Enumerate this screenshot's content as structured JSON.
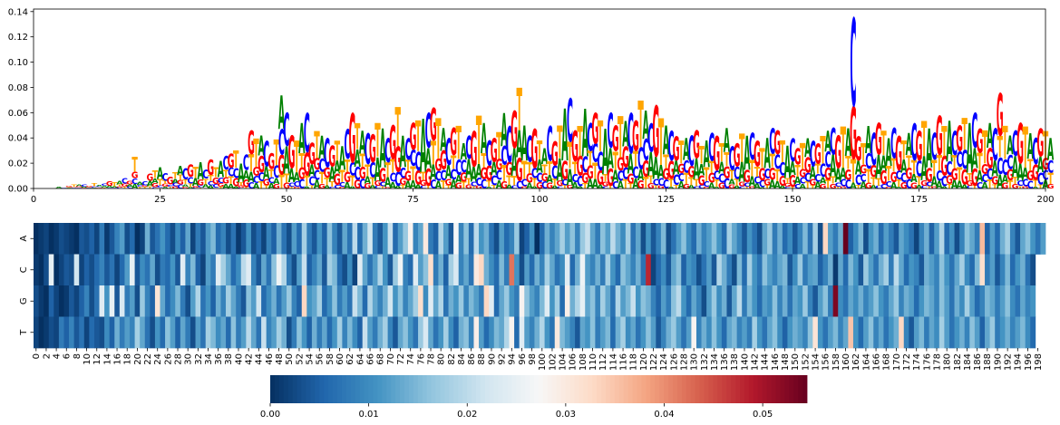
{
  "figure": {
    "background": "#ffffff"
  },
  "chart_data": [
    {
      "type": "sequence-logo",
      "x_ticks": [
        0,
        25,
        50,
        75,
        100,
        125,
        150,
        175,
        200
      ],
      "y_ticks": [
        "0.00",
        "0.02",
        "0.04",
        "0.06",
        "0.08",
        "0.10",
        "0.12",
        "0.14"
      ],
      "xlim": [
        0,
        200
      ],
      "ylim": [
        0,
        0.142
      ],
      "letters": [
        "A",
        "C",
        "G",
        "T"
      ],
      "letter_colors": {
        "A": "#008000",
        "C": "#0000ff",
        "G": "#ff0000",
        "T": "#ffa500"
      },
      "heights": [
        0.0,
        0.0,
        0.0,
        0.0,
        0.0,
        0.001,
        0.001,
        0.002,
        0.003,
        0.003,
        0.003,
        0.002,
        0.004,
        0.003,
        0.004,
        0.006,
        0.005,
        0.006,
        0.008,
        0.006,
        0.025,
        0.005,
        0.006,
        0.012,
        0.014,
        0.017,
        0.012,
        0.009,
        0.013,
        0.018,
        0.016,
        0.019,
        0.017,
        0.021,
        0.015,
        0.023,
        0.017,
        0.022,
        0.026,
        0.028,
        0.03,
        0.02,
        0.027,
        0.046,
        0.04,
        0.042,
        0.038,
        0.028,
        0.039,
        0.074,
        0.06,
        0.042,
        0.038,
        0.052,
        0.06,
        0.036,
        0.046,
        0.042,
        0.04,
        0.034,
        0.038,
        0.034,
        0.047,
        0.06,
        0.052,
        0.046,
        0.044,
        0.043,
        0.052,
        0.048,
        0.04,
        0.05,
        0.065,
        0.042,
        0.04,
        0.052,
        0.054,
        0.056,
        0.06,
        0.064,
        0.056,
        0.048,
        0.04,
        0.048,
        0.05,
        0.036,
        0.042,
        0.046,
        0.058,
        0.052,
        0.038,
        0.04,
        0.045,
        0.06,
        0.05,
        0.062,
        0.08,
        0.05,
        0.042,
        0.048,
        0.038,
        0.032,
        0.05,
        0.038,
        0.05,
        0.064,
        0.072,
        0.046,
        0.05,
        0.064,
        0.052,
        0.06,
        0.054,
        0.048,
        0.06,
        0.05,
        0.058,
        0.054,
        0.06,
        0.054,
        0.07,
        0.062,
        0.052,
        0.066,
        0.056,
        0.05,
        0.046,
        0.042,
        0.038,
        0.04,
        0.042,
        0.046,
        0.034,
        0.038,
        0.044,
        0.042,
        0.036,
        0.048,
        0.034,
        0.036,
        0.044,
        0.042,
        0.044,
        0.038,
        0.032,
        0.04,
        0.048,
        0.046,
        0.038,
        0.034,
        0.04,
        0.032,
        0.036,
        0.04,
        0.038,
        0.036,
        0.042,
        0.046,
        0.048,
        0.042,
        0.05,
        0.048,
        0.136,
        0.042,
        0.036,
        0.05,
        0.044,
        0.052,
        0.046,
        0.04,
        0.048,
        0.042,
        0.038,
        0.044,
        0.052,
        0.046,
        0.054,
        0.048,
        0.044,
        0.058,
        0.05,
        0.054,
        0.046,
        0.05,
        0.056,
        0.052,
        0.06,
        0.048,
        0.046,
        0.052,
        0.048,
        0.076,
        0.05,
        0.042,
        0.046,
        0.052,
        0.05,
        0.044,
        0.04,
        0.048,
        0.046,
        0.04
      ]
    },
    {
      "type": "heatmap",
      "y_labels": [
        "A",
        "C",
        "G",
        "T"
      ],
      "x_labels": [
        "0",
        "2",
        "4",
        "6",
        "8",
        "10",
        "12",
        "14",
        "16",
        "18",
        "20",
        "22",
        "24",
        "26",
        "28",
        "30",
        "32",
        "34",
        "36",
        "38",
        "40",
        "42",
        "44",
        "46",
        "48",
        "50",
        "52",
        "54",
        "56",
        "58",
        "60",
        "62",
        "64",
        "66",
        "68",
        "70",
        "72",
        "74",
        "76",
        "78",
        "80",
        "82",
        "84",
        "86",
        "88",
        "90",
        "92",
        "94",
        "96",
        "98",
        "100",
        "102",
        "104",
        "106",
        "108",
        "110",
        "112",
        "114",
        "116",
        "118",
        "120",
        "122",
        "124",
        "126",
        "128",
        "130",
        "132",
        "134",
        "136",
        "138",
        "140",
        "142",
        "144",
        "146",
        "148",
        "150",
        "152",
        "154",
        "156",
        "158",
        "160",
        "162",
        "164",
        "166",
        "168",
        "170",
        "172",
        "174",
        "176",
        "178",
        "180",
        "182",
        "184",
        "186",
        "188",
        "190",
        "192",
        "194",
        "196",
        "198"
      ],
      "n_columns": 200,
      "rows": [
        [
          0.0,
          0.001,
          0.002,
          0.0,
          0.001,
          0.003,
          0.002,
          0.001,
          0.0,
          0.004,
          0.003,
          0.005,
          0.002,
          0.008,
          0.001,
          0.004,
          0.009,
          0.012,
          0.003,
          0.006,
          0.0,
          0.002,
          0.014,
          0.004,
          0.007,
          0.011,
          0.006,
          0.003,
          0.01,
          0.005,
          0.013,
          0.002,
          0.008,
          0.004,
          0.012,
          0.015,
          0.006,
          0.009,
          0.003,
          0.007,
          0.001,
          0.004,
          0.011,
          0.003,
          0.006,
          0.002,
          0.009,
          0.005,
          0.014,
          0.007,
          0.003,
          0.012,
          0.006,
          0.018,
          0.008,
          0.004,
          0.011,
          0.005,
          0.016,
          0.009,
          0.004,
          0.013,
          0.007,
          0.02,
          0.006,
          0.014,
          0.022,
          0.008,
          0.004,
          0.011,
          0.021,
          0.006,
          0.012,
          0.017,
          0.028,
          0.009,
          0.013,
          0.03,
          0.008,
          0.005,
          0.019,
          0.012,
          0.004,
          0.027,
          0.009,
          0.016,
          0.006,
          0.02,
          0.011,
          0.014,
          0.007,
          0.003,
          0.012,
          0.006,
          0.009,
          0.017,
          0.002,
          0.005,
          0.011,
          0.0,
          0.006,
          0.014,
          0.009,
          0.013,
          0.018,
          0.012,
          0.016,
          0.009,
          0.017,
          0.021,
          0.013,
          0.008,
          0.016,
          0.012,
          0.02,
          0.014,
          0.01,
          0.018,
          0.007,
          0.013,
          0.003,
          0.011,
          0.004,
          0.009,
          0.015,
          0.003,
          0.007,
          0.012,
          0.016,
          0.01,
          0.006,
          0.014,
          0.009,
          0.012,
          0.016,
          0.011,
          0.006,
          0.018,
          0.013,
          0.009,
          0.004,
          0.011,
          0.007,
          0.003,
          0.013,
          0.017,
          0.008,
          0.014,
          0.006,
          0.01,
          0.004,
          0.009,
          0.015,
          0.007,
          0.018,
          0.003,
          0.033,
          0.012,
          0.008,
          0.014,
          0.057,
          0.005,
          0.01,
          0.015,
          0.003,
          0.011,
          0.014,
          0.006,
          0.012,
          0.008,
          0.004,
          0.013,
          0.01,
          0.007,
          0.002,
          0.009,
          0.014,
          0.005,
          0.012,
          0.019,
          0.006,
          0.011,
          0.003,
          0.009,
          0.016,
          0.013,
          0.008,
          0.036,
          0.005,
          0.012,
          0.006,
          0.014,
          0.018,
          0.009,
          0.004,
          0.013,
          0.016,
          0.011,
          0.007,
          0.012
        ],
        [
          0.001,
          0.0,
          0.003,
          0.025,
          0.0,
          0.002,
          0.004,
          0.003,
          0.022,
          0.002,
          0.005,
          0.003,
          0.006,
          0.009,
          0.004,
          0.007,
          0.002,
          0.006,
          0.012,
          0.025,
          0.004,
          0.01,
          0.007,
          0.013,
          0.003,
          0.008,
          0.006,
          0.011,
          0.004,
          0.024,
          0.009,
          0.015,
          0.005,
          0.002,
          0.012,
          0.008,
          0.024,
          0.018,
          0.013,
          0.006,
          0.01,
          0.02,
          0.024,
          0.009,
          0.004,
          0.013,
          0.007,
          0.016,
          0.026,
          0.019,
          0.008,
          0.003,
          0.012,
          0.021,
          0.005,
          0.009,
          0.013,
          0.004,
          0.018,
          0.015,
          0.006,
          0.003,
          0.01,
          0.002,
          0.024,
          0.013,
          0.007,
          0.012,
          0.019,
          0.011,
          0.004,
          0.017,
          0.026,
          0.009,
          0.006,
          0.024,
          0.012,
          0.016,
          0.032,
          0.008,
          0.014,
          0.005,
          0.018,
          0.023,
          0.009,
          0.013,
          0.007,
          0.03,
          0.033,
          0.014,
          0.01,
          0.006,
          0.015,
          0.008,
          0.042,
          0.011,
          0.003,
          0.012,
          0.006,
          0.014,
          0.009,
          0.018,
          0.013,
          0.007,
          0.01,
          0.024,
          0.006,
          0.014,
          0.026,
          0.012,
          0.009,
          0.014,
          0.008,
          0.018,
          0.011,
          0.006,
          0.016,
          0.013,
          0.009,
          0.014,
          0.007,
          0.048,
          0.002,
          0.006,
          0.01,
          0.004,
          0.013,
          0.016,
          0.005,
          0.011,
          0.009,
          0.003,
          0.007,
          0.012,
          0.004,
          0.019,
          0.014,
          0.008,
          0.003,
          0.015,
          0.006,
          0.018,
          0.011,
          0.007,
          0.016,
          0.012,
          0.009,
          0.013,
          0.015,
          0.004,
          0.01,
          0.017,
          0.008,
          0.012,
          0.013,
          0.005,
          0.009,
          0.014,
          0.001,
          0.013,
          0.006,
          0.015,
          0.011,
          0.004,
          0.017,
          0.012,
          0.007,
          0.014,
          0.018,
          0.008,
          0.02,
          0.013,
          0.006,
          0.011,
          0.009,
          0.004,
          0.014,
          0.012,
          0.009,
          0.016,
          0.011,
          0.007,
          0.013,
          0.018,
          0.01,
          0.006,
          0.015,
          0.032,
          0.008,
          0.012,
          0.004,
          0.009,
          0.015,
          0.006,
          0.011,
          0.014,
          0.007,
          0.003
        ],
        [
          0.003,
          0.001,
          0.0,
          0.005,
          0.002,
          0.0,
          0.001,
          0.004,
          0.002,
          0.005,
          0.009,
          0.003,
          0.007,
          0.024,
          0.011,
          0.025,
          0.004,
          0.023,
          0.008,
          0.012,
          0.003,
          0.017,
          0.009,
          0.005,
          0.031,
          0.013,
          0.006,
          0.01,
          0.015,
          0.008,
          0.003,
          0.012,
          0.019,
          0.007,
          0.011,
          0.005,
          0.014,
          0.009,
          0.018,
          0.013,
          0.008,
          0.004,
          0.016,
          0.012,
          0.022,
          0.006,
          0.01,
          0.014,
          0.007,
          0.012,
          0.017,
          0.009,
          0.005,
          0.033,
          0.011,
          0.013,
          0.018,
          0.006,
          0.01,
          0.016,
          0.008,
          0.012,
          0.007,
          0.021,
          0.015,
          0.006,
          0.019,
          0.013,
          0.009,
          0.014,
          0.022,
          0.011,
          0.016,
          0.009,
          0.013,
          0.018,
          0.032,
          0.01,
          0.024,
          0.013,
          0.019,
          0.007,
          0.014,
          0.011,
          0.017,
          0.009,
          0.015,
          0.012,
          0.008,
          0.033,
          0.024,
          0.006,
          0.013,
          0.017,
          0.011,
          0.008,
          0.028,
          0.016,
          0.012,
          0.009,
          0.015,
          0.024,
          0.011,
          0.018,
          0.006,
          0.029,
          0.014,
          0.019,
          0.025,
          0.013,
          0.016,
          0.009,
          0.018,
          0.013,
          0.007,
          0.019,
          0.012,
          0.015,
          0.021,
          0.011,
          0.016,
          0.014,
          0.009,
          0.005,
          0.012,
          0.008,
          0.016,
          0.02,
          0.011,
          0.006,
          0.013,
          0.009,
          0.003,
          0.012,
          0.017,
          0.01,
          0.014,
          0.004,
          0.013,
          0.02,
          0.008,
          0.015,
          0.011,
          0.006,
          0.012,
          0.01,
          0.016,
          0.009,
          0.014,
          0.007,
          0.013,
          0.011,
          0.017,
          0.009,
          0.004,
          0.012,
          0.016,
          0.008,
          0.053,
          0.01,
          0.007,
          0.013,
          0.01,
          0.014,
          0.009,
          0.012,
          0.016,
          0.011,
          0.008,
          0.013,
          0.017,
          0.009,
          0.014,
          0.012,
          0.006,
          0.011,
          0.015,
          0.013,
          0.009,
          0.016,
          0.012,
          0.007,
          0.014,
          0.01,
          0.018,
          0.012,
          0.006,
          0.009,
          0.015,
          0.013,
          0.008,
          0.012,
          0.016,
          0.01,
          0.007,
          0.013,
          0.009,
          0.011
        ],
        [
          0.002,
          0.0,
          0.001,
          0.003,
          0.002,
          0.008,
          0.005,
          0.009,
          0.004,
          0.007,
          0.002,
          0.006,
          0.004,
          0.003,
          0.01,
          0.005,
          0.014,
          0.008,
          0.012,
          0.009,
          0.018,
          0.013,
          0.007,
          0.003,
          0.011,
          0.006,
          0.016,
          0.012,
          0.005,
          0.013,
          0.008,
          0.003,
          0.012,
          0.007,
          0.018,
          0.015,
          0.01,
          0.013,
          0.006,
          0.016,
          0.008,
          0.012,
          0.02,
          0.013,
          0.007,
          0.021,
          0.009,
          0.012,
          0.018,
          0.014,
          0.003,
          0.008,
          0.016,
          0.011,
          0.005,
          0.014,
          0.008,
          0.013,
          0.006,
          0.011,
          0.018,
          0.009,
          0.015,
          0.01,
          0.005,
          0.021,
          0.012,
          0.008,
          0.014,
          0.018,
          0.009,
          0.004,
          0.013,
          0.016,
          0.011,
          0.007,
          0.017,
          0.023,
          0.013,
          0.007,
          0.011,
          0.018,
          0.01,
          0.005,
          0.014,
          0.016,
          0.009,
          0.029,
          0.012,
          0.006,
          0.01,
          0.015,
          0.013,
          0.019,
          0.028,
          0.006,
          0.024,
          0.012,
          0.009,
          0.014,
          0.019,
          0.011,
          0.007,
          0.03,
          0.015,
          0.012,
          0.009,
          0.004,
          0.013,
          0.011,
          0.016,
          0.008,
          0.012,
          0.015,
          0.006,
          0.014,
          0.018,
          0.01,
          0.013,
          0.007,
          0.011,
          0.016,
          0.012,
          0.004,
          0.009,
          0.014,
          0.017,
          0.012,
          0.007,
          0.012,
          0.028,
          0.009,
          0.014,
          0.01,
          0.016,
          0.011,
          0.006,
          0.013,
          0.015,
          0.009,
          0.012,
          0.008,
          0.018,
          0.011,
          0.007,
          0.013,
          0.016,
          0.01,
          0.005,
          0.011,
          0.014,
          0.012,
          0.009,
          0.016,
          0.031,
          0.011,
          0.007,
          0.012,
          0.015,
          0.009,
          0.013,
          0.035,
          0.011,
          0.006,
          0.012,
          0.016,
          0.009,
          0.013,
          0.007,
          0.011,
          0.014,
          0.033,
          0.009,
          0.004,
          0.012,
          0.015,
          0.008,
          0.013,
          0.01,
          0.018,
          0.012,
          0.007,
          0.011,
          0.014,
          0.009,
          0.016,
          0.012,
          0.005,
          0.013,
          0.017,
          0.008,
          0.011,
          0.014,
          0.009,
          0.012,
          0.015,
          0.01,
          0.006
        ]
      ],
      "colorbar": {
        "ticks": [
          "0.00",
          "0.01",
          "0.02",
          "0.03",
          "0.04",
          "0.05"
        ],
        "range": [
          0,
          0.0545
        ],
        "colormap": "RdBu_r"
      }
    }
  ]
}
